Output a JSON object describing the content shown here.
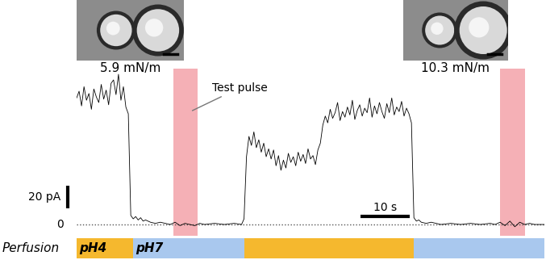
{
  "chart_data": {
    "type": "line",
    "color": "#000000",
    "x": [
      0,
      0.5,
      1,
      1.5,
      2,
      2.5,
      3,
      3.5,
      4,
      4.5,
      5,
      5.5,
      6,
      6.5,
      7,
      7.5,
      8,
      8.5,
      9,
      9.5,
      10,
      10.5,
      11,
      11.5,
      12,
      12.5,
      13,
      13.5,
      14,
      15,
      16,
      17,
      18,
      19,
      20,
      21,
      22,
      23,
      24,
      25,
      26,
      28,
      30,
      32,
      33.5,
      34,
      34.5,
      35,
      35.5,
      36,
      36.5,
      37,
      37.5,
      38,
      38.5,
      39,
      39.5,
      40,
      40.5,
      41,
      41.5,
      42,
      42.5,
      43,
      43.5,
      44,
      44.5,
      45,
      45.5,
      46,
      46.5,
      47,
      47.5,
      48,
      48.5,
      49,
      49.5,
      50,
      50.5,
      51,
      51.5,
      52,
      52.5,
      53,
      53.5,
      54,
      54.5,
      55,
      55.5,
      56,
      56.5,
      57,
      57.5,
      58,
      58.5,
      59,
      59.5,
      60,
      60.5,
      61,
      61.5,
      62,
      62.5,
      63,
      63.5,
      64,
      64.5,
      65,
      65.5,
      66,
      66.5,
      67,
      67.5,
      68,
      68.5,
      69,
      69.5,
      70,
      71,
      72,
      74,
      76,
      78,
      80,
      82,
      84,
      85,
      86,
      87,
      88,
      89,
      90,
      91,
      92,
      93,
      95
    ],
    "values": [
      112,
      118,
      105,
      122,
      110,
      116,
      102,
      120,
      113,
      108,
      124,
      111,
      119,
      106,
      125,
      128,
      115,
      133,
      110,
      122,
      104,
      98,
      8,
      5,
      7,
      4,
      6,
      3,
      4,
      2,
      1,
      2,
      1,
      0,
      2,
      -1,
      1,
      0,
      -1,
      1,
      0,
      1,
      0,
      1,
      0,
      5,
      60,
      78,
      70,
      82,
      68,
      75,
      64,
      72,
      60,
      67,
      58,
      66,
      52,
      61,
      48,
      57,
      50,
      63,
      55,
      60,
      52,
      64,
      56,
      62,
      54,
      67,
      58,
      61,
      53,
      66,
      72,
      88,
      96,
      90,
      102,
      94,
      99,
      108,
      92,
      100,
      95,
      104,
      97,
      110,
      93,
      101,
      106,
      96,
      103,
      99,
      112,
      95,
      105,
      98,
      108,
      100,
      94,
      107,
      99,
      112,
      97,
      104,
      100,
      109,
      96,
      103,
      98,
      90,
      6,
      3,
      4,
      2,
      1,
      2,
      0,
      1,
      0,
      1,
      0,
      1,
      0,
      2,
      -1,
      3,
      -2,
      2,
      0,
      1,
      0,
      0
    ],
    "xlim": [
      0,
      95
    ],
    "ylim": [
      -10,
      138
    ],
    "tick_labels": false,
    "baseline": {
      "value": 0,
      "label": "0"
    },
    "test_pulse_label": "Test pulse",
    "test_pulse_color": "#f4a3aa",
    "test_pulses": [
      {
        "start": 19.7,
        "end": 24.6
      },
      {
        "start": 86,
        "end": 91
      }
    ],
    "scale_bars": {
      "y": {
        "value": 20,
        "label": "20 pA"
      },
      "x": {
        "value": 10,
        "label": "10 s"
      }
    },
    "perfusion": {
      "label": "Perfusion",
      "segments": [
        {
          "start": 0,
          "end": 11.5,
          "label": "pH4",
          "color": "#f5b82e"
        },
        {
          "start": 11.5,
          "end": 34,
          "label": "pH7",
          "color": "#a9c8ee"
        },
        {
          "start": 34,
          "end": 68.4,
          "color": "#f5b82e"
        },
        {
          "start": 68.4,
          "end": 95,
          "color": "#a9c8ee"
        }
      ]
    },
    "images": [
      {
        "label": "5.9 mN/m"
      },
      {
        "label": "10.3 mN/m"
      }
    ]
  }
}
